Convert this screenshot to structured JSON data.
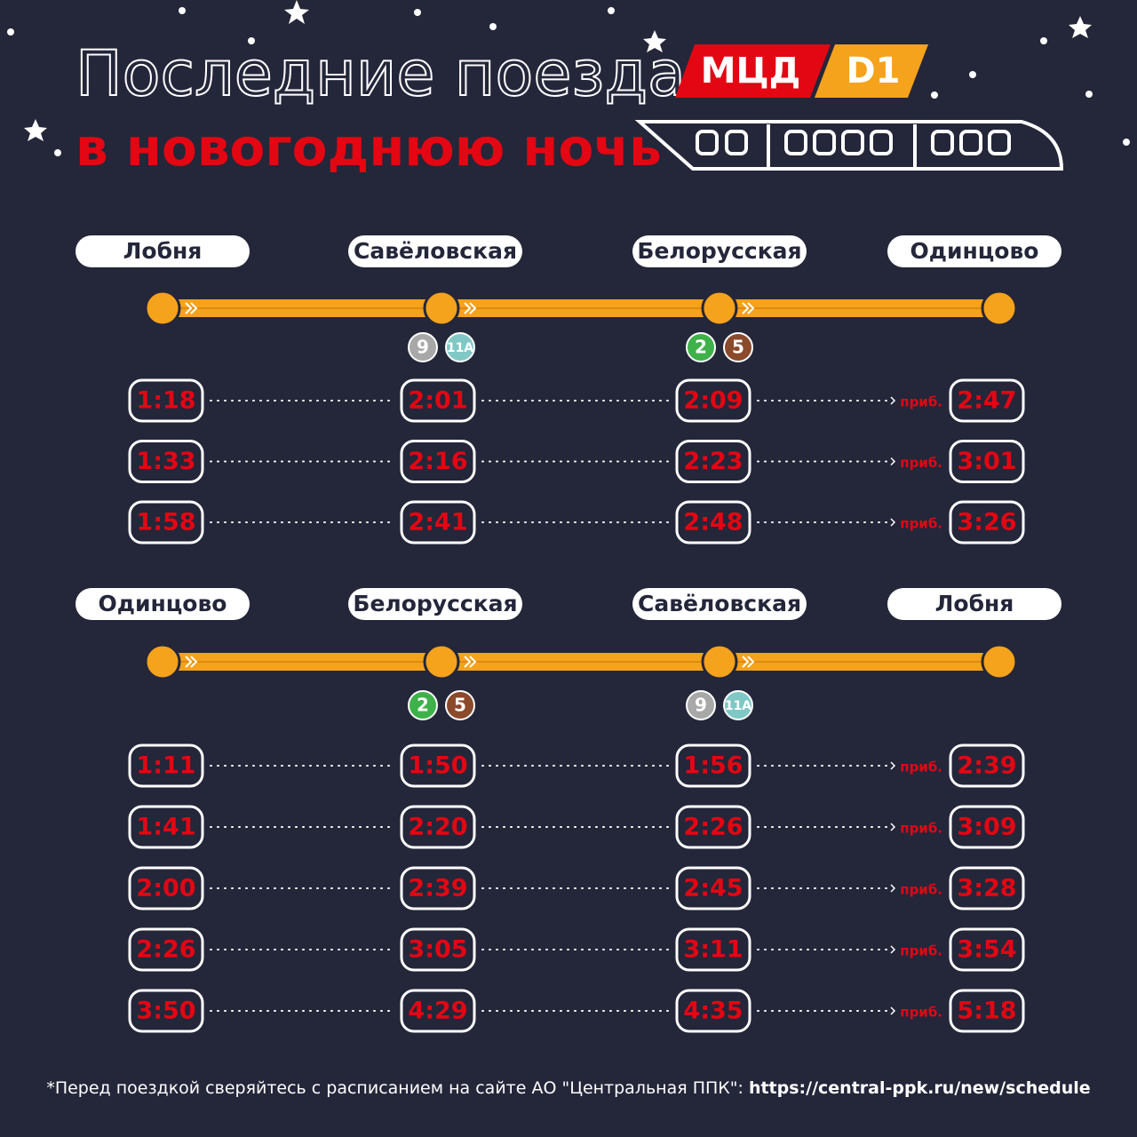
{
  "header": {
    "title_line1": "Последние поезда",
    "title_line2": "в новогоднюю ночь",
    "logo": {
      "brand": "МЦД",
      "line": "D1"
    }
  },
  "directions": [
    {
      "stations": [
        {
          "name": "Лобня",
          "transfers": []
        },
        {
          "name": "Савёловская",
          "transfers": [
            {
              "label": "9",
              "color": "#a8a8a8"
            },
            {
              "label": "11А",
              "color": "#7fc8c6"
            }
          ]
        },
        {
          "name": "Белорусская",
          "transfers": [
            {
              "label": "2",
              "color": "#3fb14a"
            },
            {
              "label": "5",
              "color": "#8b4a2b"
            }
          ]
        },
        {
          "name": "Одинцово",
          "transfers": []
        }
      ],
      "arrival_label": "приб.",
      "trips": [
        [
          "1:18",
          "2:01",
          "2:09",
          "2:47"
        ],
        [
          "1:33",
          "2:16",
          "2:23",
          "3:01"
        ],
        [
          "1:58",
          "2:41",
          "2:48",
          "3:26"
        ]
      ]
    },
    {
      "stations": [
        {
          "name": "Одинцово",
          "transfers": []
        },
        {
          "name": "Белорусская",
          "transfers": [
            {
              "label": "2",
              "color": "#3fb14a"
            },
            {
              "label": "5",
              "color": "#8b4a2b"
            }
          ]
        },
        {
          "name": "Савёловская",
          "transfers": [
            {
              "label": "9",
              "color": "#a8a8a8"
            },
            {
              "label": "11А",
              "color": "#7fc8c6"
            }
          ]
        },
        {
          "name": "Лобня",
          "transfers": []
        }
      ],
      "arrival_label": "приб.",
      "trips": [
        [
          "1:11",
          "1:50",
          "1:56",
          "2:39"
        ],
        [
          "1:41",
          "2:20",
          "2:26",
          "3:09"
        ],
        [
          "2:00",
          "2:39",
          "2:45",
          "3:28"
        ],
        [
          "2:26",
          "3:05",
          "3:11",
          "3:54"
        ],
        [
          "3:50",
          "4:29",
          "4:35",
          "5:18"
        ]
      ]
    }
  ],
  "footer": {
    "note": "*Перед поездкой сверяйтесь с расписанием на сайте АО \"Центральная ППК\": ",
    "link": "https://central-ppk.ru/new/schedule"
  }
}
